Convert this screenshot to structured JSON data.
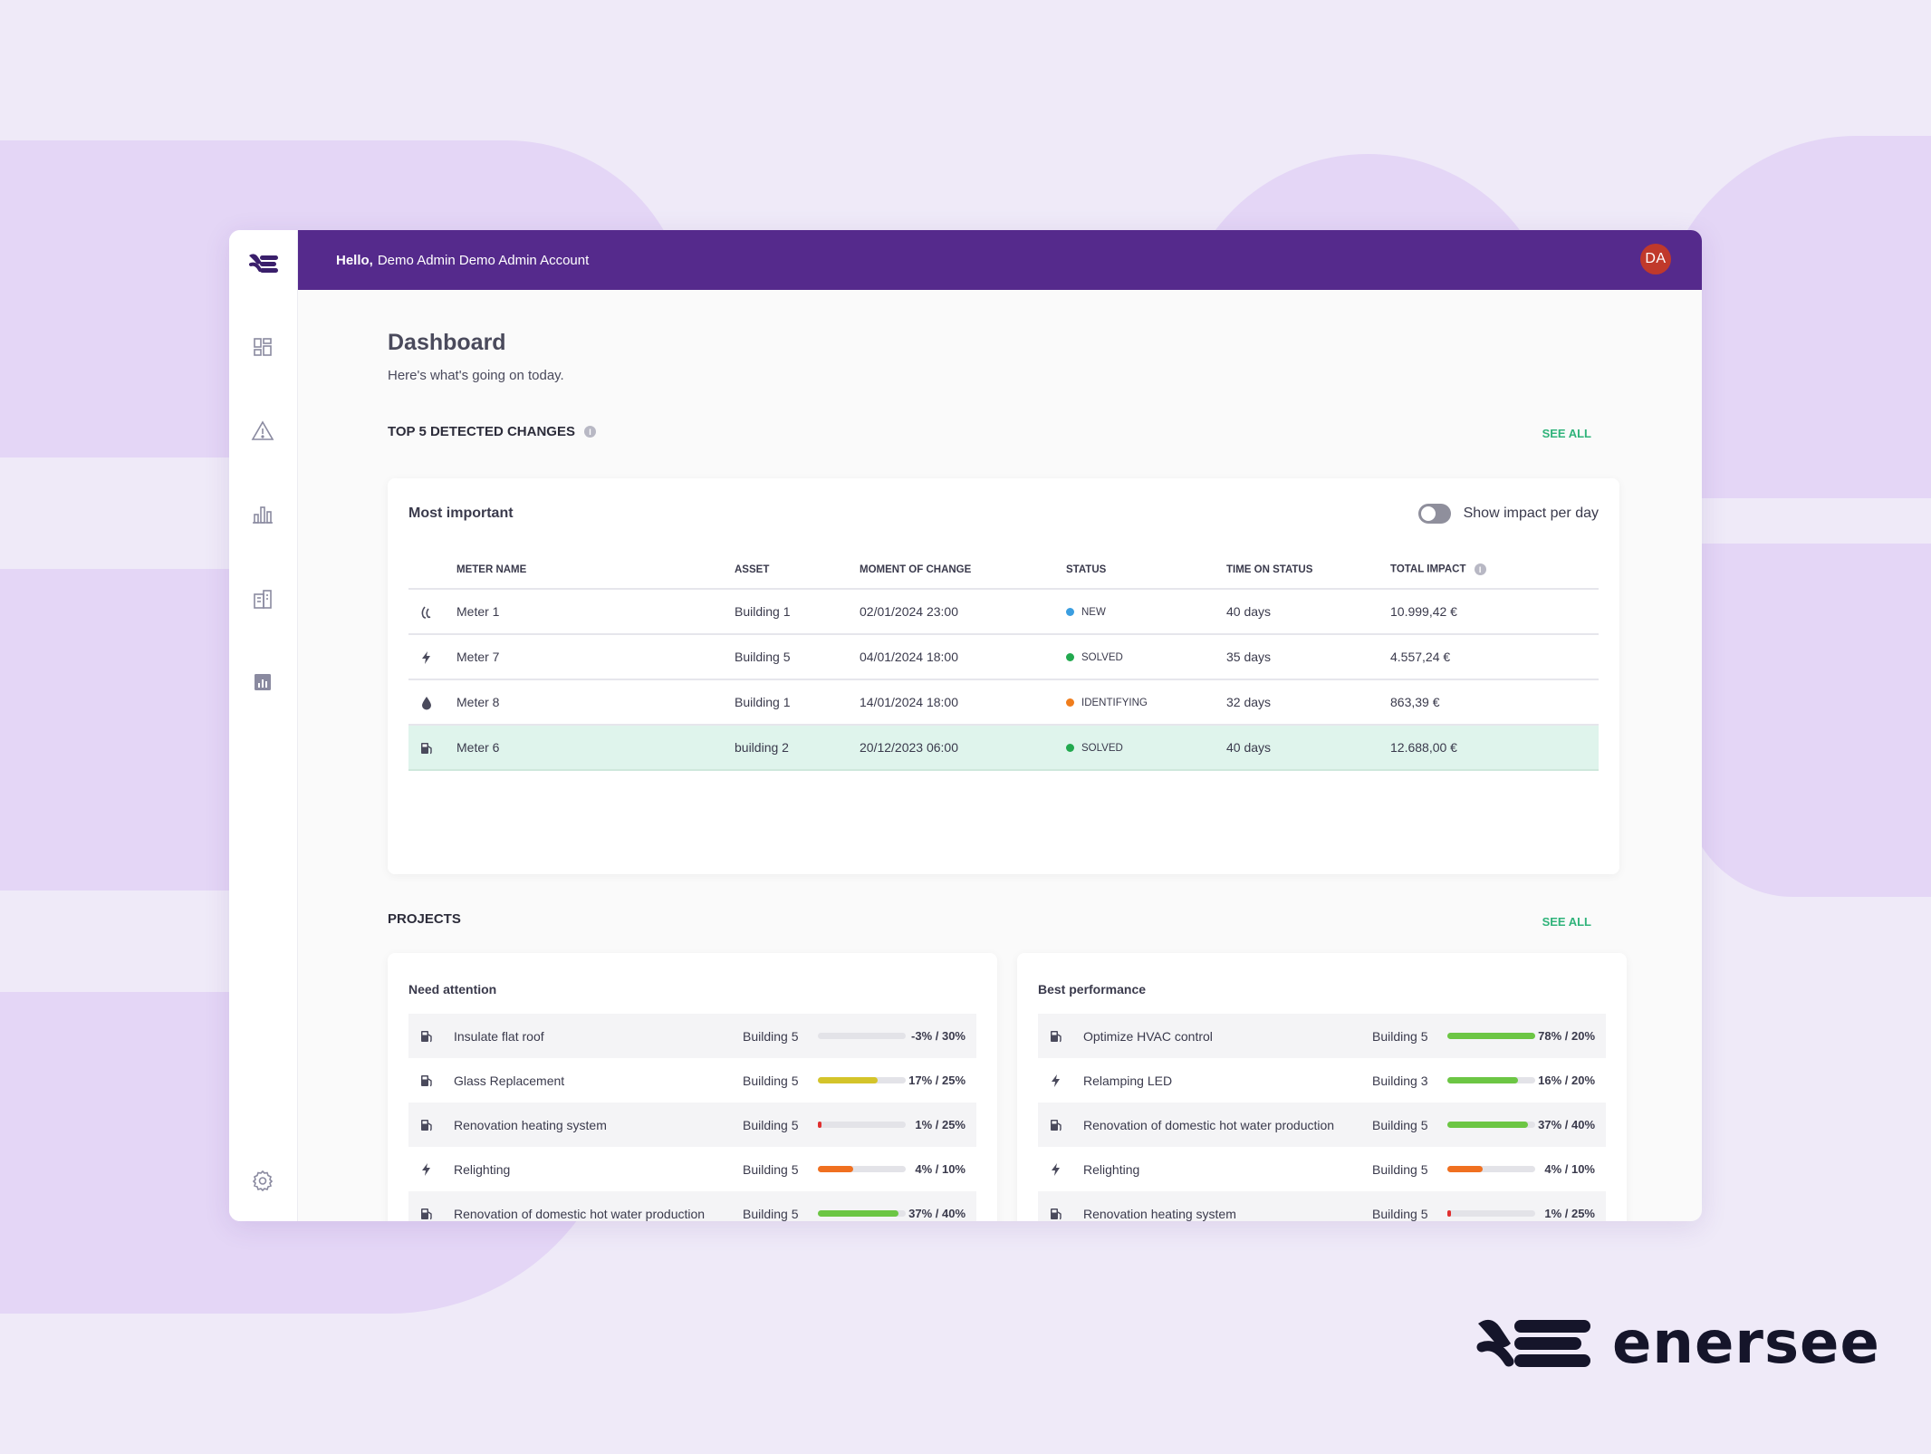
{
  "header": {
    "greeting_bold": "Hello,",
    "greeting_name": "Demo Admin Demo Admin Account",
    "avatar_initials": "DA",
    "bar_color": "#552a8c"
  },
  "sidebar": {
    "items": [
      {
        "icon": "dashboard-icon"
      },
      {
        "icon": "warning-icon"
      },
      {
        "icon": "bar-chart-icon"
      },
      {
        "icon": "building-icon"
      },
      {
        "icon": "report-icon"
      }
    ],
    "bottom_icon": "settings-icon"
  },
  "page": {
    "title": "Dashboard",
    "subtitle": "Here's what's going on today."
  },
  "changes": {
    "section_title": "TOP 5 DETECTED CHANGES",
    "see_all": "SEE ALL",
    "card_title": "Most important",
    "toggle_label": "Show impact per day",
    "columns": [
      "METER NAME",
      "ASSET",
      "MOMENT OF CHANGE",
      "STATUS",
      "TIME ON STATUS",
      "TOTAL IMPACT"
    ],
    "rows": [
      {
        "icon": "gas-flame-icon",
        "meter": "Meter 1",
        "asset": "Building 1",
        "moment": "02/01/2024 23:00",
        "status": "NEW",
        "status_color": "#3b9ee0",
        "time": "40 days",
        "impact": "10.999,42 €"
      },
      {
        "icon": "electricity-bolt-icon",
        "meter": "Meter 7",
        "asset": "Building 5",
        "moment": "04/01/2024 18:00",
        "status": "SOLVED",
        "status_color": "#22a94f",
        "time": "35 days",
        "impact": "4.557,24 €"
      },
      {
        "icon": "water-drop-icon",
        "meter": "Meter 8",
        "asset": "Building 1",
        "moment": "14/01/2024 18:00",
        "status": "IDENTIFYING",
        "status_color": "#f07d1c",
        "time": "32 days",
        "impact": "863,39 €"
      },
      {
        "icon": "fuel-pump-icon",
        "meter": "Meter 6",
        "asset": "building 2",
        "moment": "20/12/2023 06:00",
        "status": "SOLVED",
        "status_color": "#22a94f",
        "time": "40 days",
        "impact": "12.688,00 €"
      }
    ]
  },
  "projects": {
    "section_title": "PROJECTS",
    "see_all": "SEE ALL",
    "need_attention": {
      "title": "Need attention",
      "items": [
        {
          "icon": "fuel-pump-icon",
          "name": "Insulate flat roof",
          "asset": "Building 5",
          "progress": 0,
          "bar_color": "#cccccc",
          "value": "-3% / 30%"
        },
        {
          "icon": "fuel-pump-icon",
          "name": "Glass Replacement",
          "asset": "Building 5",
          "progress": 0.68,
          "bar_color": "#d4c42a",
          "value": "17% / 25%"
        },
        {
          "icon": "fuel-pump-icon",
          "name": "Renovation heating system",
          "asset": "Building 5",
          "progress": 0.04,
          "bar_color": "#e03030",
          "value": "1% / 25%"
        },
        {
          "icon": "electricity-bolt-icon",
          "name": "Relighting",
          "asset": "Building 5",
          "progress": 0.4,
          "bar_color": "#f07020",
          "value": "4% / 10%"
        },
        {
          "icon": "fuel-pump-icon",
          "name": "Renovation of domestic hot water production",
          "asset": "Building 5",
          "progress": 0.92,
          "bar_color": "#6cc644",
          "value": "37% / 40%"
        }
      ]
    },
    "best_performance": {
      "title": "Best performance",
      "items": [
        {
          "icon": "fuel-pump-icon",
          "name": "Optimize HVAC control",
          "asset": "Building 5",
          "progress": 1.0,
          "bar_color": "#6cc644",
          "value": "78% / 20%"
        },
        {
          "icon": "electricity-bolt-icon",
          "name": "Relamping LED",
          "asset": "Building 3",
          "progress": 0.8,
          "bar_color": "#6cc644",
          "value": "16% / 20%"
        },
        {
          "icon": "fuel-pump-icon",
          "name": "Renovation of domestic hot water production",
          "asset": "Building 5",
          "progress": 0.92,
          "bar_color": "#6cc644",
          "value": "37% / 40%"
        },
        {
          "icon": "electricity-bolt-icon",
          "name": "Relighting",
          "asset": "Building 5",
          "progress": 0.4,
          "bar_color": "#f07020",
          "value": "4% / 10%"
        },
        {
          "icon": "fuel-pump-icon",
          "name": "Renovation heating system",
          "asset": "Building 5",
          "progress": 0.04,
          "bar_color": "#e03030",
          "value": "1% / 25%"
        }
      ]
    }
  },
  "brand": {
    "name": "enersee",
    "logo_icon": "enersee-logo-icon"
  }
}
